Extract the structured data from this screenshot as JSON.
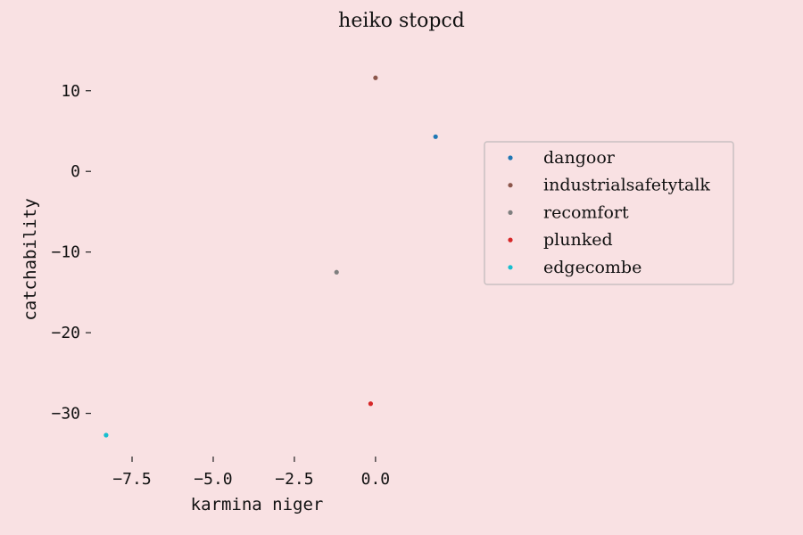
{
  "chart_data": {
    "type": "scatter",
    "title": "heiko stopcd",
    "xlabel": "karmina niger",
    "ylabel": "catchability",
    "xlim": [
      -8.6,
      1.9
    ],
    "ylim": [
      -34.8,
      15.5
    ],
    "xticks": [
      -7.5,
      -5.0,
      -2.5,
      0.0
    ],
    "xtick_labels": [
      "−7.5",
      "−5.0",
      "−2.5",
      "0.0"
    ],
    "yticks": [
      10,
      0,
      -10,
      -20,
      -30
    ],
    "ytick_labels": [
      "10",
      "0",
      "−10",
      "−20",
      "−30"
    ],
    "grid": false,
    "legend_position": "upper right",
    "series": [
      {
        "name": "dangoor",
        "color": "#1f77b4",
        "x": [
          1.85
        ],
        "y": [
          4.3
        ]
      },
      {
        "name": "industrialsafetytalk",
        "color": "#8c564b",
        "x": [
          0.0
        ],
        "y": [
          11.6
        ]
      },
      {
        "name": "recomfort",
        "color": "#7f7f7f",
        "x": [
          -1.2
        ],
        "y": [
          -12.5
        ]
      },
      {
        "name": "plunked",
        "color": "#d62728",
        "x": [
          -0.15
        ],
        "y": [
          -28.8
        ]
      },
      {
        "name": "edgecombe",
        "color": "#17becf",
        "x": [
          -8.3
        ],
        "y": [
          -32.7
        ]
      }
    ]
  }
}
